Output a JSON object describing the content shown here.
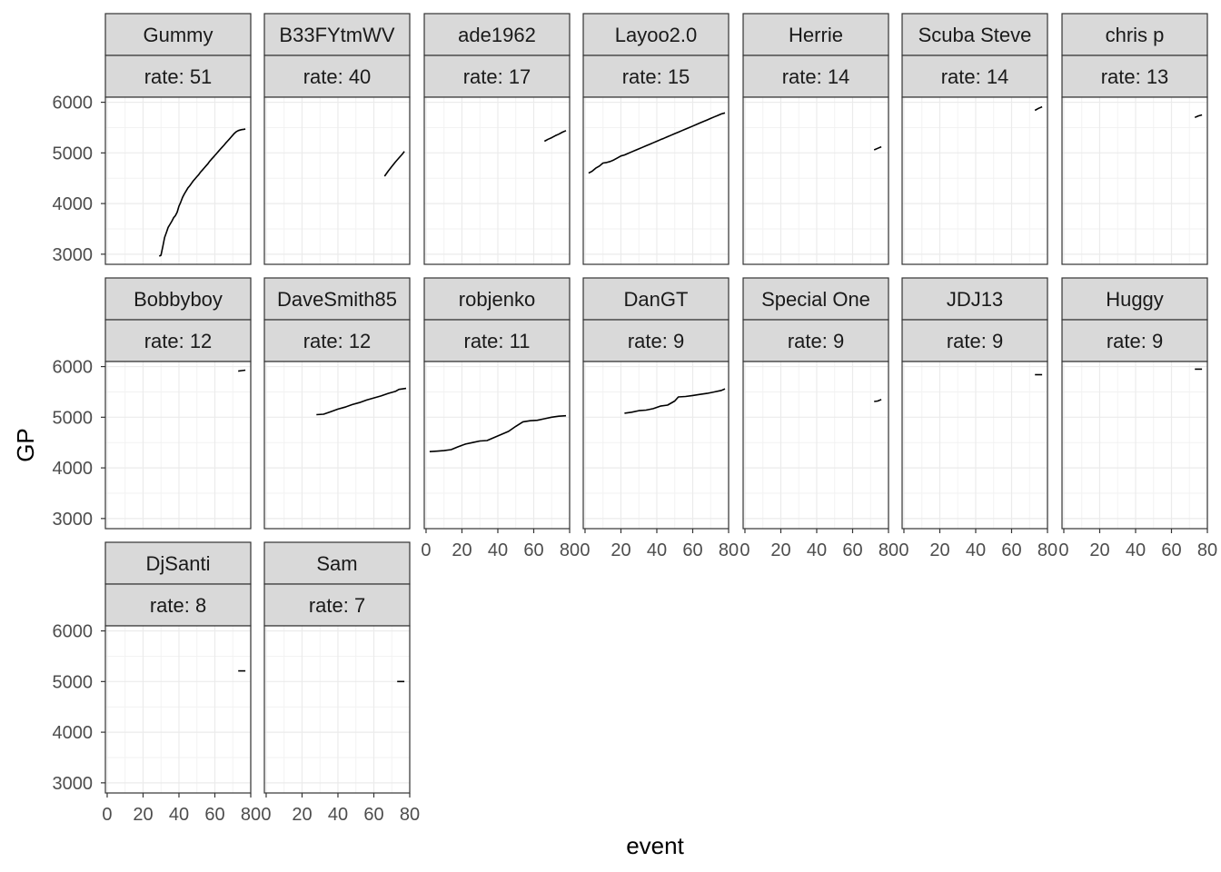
{
  "chart_data": {
    "type": "line",
    "layout": "faceted small multiples",
    "xlabel": "event",
    "ylabel": "GP",
    "xlim": [
      -1,
      80
    ],
    "ylim": [
      2800,
      6100
    ],
    "x_ticks": [
      0,
      20,
      40,
      60,
      80
    ],
    "y_ticks": [
      3000,
      4000,
      5000,
      6000
    ],
    "grid": true,
    "panels": [
      {
        "name": "Gummy",
        "rate_label": "rate:  51",
        "x": [
          29,
          30,
          31,
          32,
          33,
          34,
          35,
          36,
          37,
          38,
          39,
          40,
          41,
          42,
          43,
          44,
          45,
          46,
          47,
          48,
          49,
          50,
          51,
          52,
          53,
          54,
          55,
          56,
          57,
          58,
          59,
          60,
          61,
          62,
          63,
          64,
          65,
          66,
          67,
          68,
          69,
          70,
          71,
          72,
          73,
          74,
          75,
          76,
          77
        ],
        "y": [
          2960,
          2980,
          3150,
          3330,
          3430,
          3530,
          3590,
          3650,
          3720,
          3760,
          3830,
          3950,
          4030,
          4120,
          4190,
          4250,
          4310,
          4350,
          4400,
          4450,
          4490,
          4530,
          4570,
          4620,
          4660,
          4700,
          4740,
          4780,
          4830,
          4870,
          4910,
          4950,
          4990,
          5030,
          5070,
          5110,
          5150,
          5190,
          5230,
          5270,
          5310,
          5350,
          5390,
          5420,
          5440,
          5450,
          5460,
          5465,
          5470
        ]
      },
      {
        "name": "B33FYtmWV",
        "rate_label": "rate:  40",
        "x": [
          66,
          68,
          70,
          72,
          74,
          76,
          77
        ],
        "y": [
          4540,
          4640,
          4730,
          4820,
          4900,
          4980,
          5030
        ]
      },
      {
        "name": "ade1962",
        "rate_label": "rate:  17",
        "x": [
          66,
          68,
          70,
          72,
          74,
          76,
          78
        ],
        "y": [
          5230,
          5270,
          5300,
          5340,
          5370,
          5410,
          5440
        ]
      },
      {
        "name": "Layoo2.0",
        "rate_label": "rate:  15",
        "x": [
          2,
          4,
          6,
          8,
          10,
          12,
          14,
          16,
          18,
          20,
          22,
          24,
          26,
          28,
          30,
          32,
          34,
          36,
          38,
          40,
          42,
          44,
          46,
          48,
          50,
          52,
          54,
          56,
          58,
          60,
          62,
          64,
          66,
          68,
          70,
          72,
          74,
          76,
          78
        ],
        "y": [
          4600,
          4640,
          4700,
          4740,
          4800,
          4810,
          4830,
          4860,
          4900,
          4940,
          4960,
          4990,
          5020,
          5050,
          5080,
          5110,
          5140,
          5170,
          5200,
          5230,
          5260,
          5290,
          5320,
          5350,
          5380,
          5410,
          5440,
          5470,
          5500,
          5530,
          5560,
          5590,
          5620,
          5650,
          5680,
          5710,
          5740,
          5770,
          5790
        ]
      },
      {
        "name": "Herrie",
        "rate_label": "rate:  14",
        "x": [
          72,
          74,
          76
        ],
        "y": [
          5060,
          5090,
          5120
        ]
      },
      {
        "name": "Scuba Steve",
        "rate_label": "rate:  14",
        "x": [
          73,
          75,
          77
        ],
        "y": [
          5840,
          5880,
          5910
        ]
      },
      {
        "name": "chris p",
        "rate_label": "rate:  13",
        "x": [
          73,
          75,
          77
        ],
        "y": [
          5700,
          5730,
          5750
        ]
      },
      {
        "name": "Bobbyboy",
        "rate_label": "rate:  12",
        "x": [
          73,
          75,
          77
        ],
        "y": [
          5910,
          5920,
          5930
        ]
      },
      {
        "name": "DaveSmith85",
        "rate_label": "rate:  12",
        "x": [
          28,
          32,
          36,
          40,
          44,
          48,
          52,
          56,
          60,
          64,
          68,
          72,
          74,
          78
        ],
        "y": [
          5050,
          5060,
          5110,
          5160,
          5200,
          5250,
          5290,
          5340,
          5380,
          5420,
          5470,
          5510,
          5550,
          5570
        ]
      },
      {
        "name": "robjenko",
        "rate_label": "rate:  11",
        "x": [
          2,
          6,
          10,
          14,
          18,
          22,
          26,
          30,
          34,
          38,
          42,
          46,
          50,
          54,
          58,
          62,
          66,
          70,
          74,
          78
        ],
        "y": [
          4320,
          4330,
          4340,
          4360,
          4420,
          4470,
          4500,
          4530,
          4540,
          4600,
          4660,
          4720,
          4820,
          4910,
          4930,
          4940,
          4970,
          5000,
          5020,
          5030
        ]
      },
      {
        "name": "DanGT",
        "rate_label": "rate:  9",
        "x": [
          22,
          26,
          30,
          34,
          38,
          42,
          46,
          50,
          52,
          56,
          60,
          64,
          68,
          72,
          76,
          78
        ],
        "y": [
          5080,
          5100,
          5130,
          5140,
          5170,
          5220,
          5240,
          5320,
          5400,
          5410,
          5430,
          5450,
          5470,
          5500,
          5530,
          5560
        ]
      },
      {
        "name": "Special One",
        "rate_label": "rate:  9",
        "x": [
          72,
          74,
          76
        ],
        "y": [
          5310,
          5320,
          5350
        ]
      },
      {
        "name": "JDJ13",
        "rate_label": "rate:  9",
        "x": [
          73,
          77
        ],
        "y": [
          5840,
          5840
        ]
      },
      {
        "name": "Huggy",
        "rate_label": "rate:  9",
        "x": [
          73,
          77
        ],
        "y": [
          5950,
          5950
        ]
      },
      {
        "name": "DjSanti",
        "rate_label": "rate:  8",
        "x": [
          73,
          77
        ],
        "y": [
          5210,
          5210
        ]
      },
      {
        "name": "Sam",
        "rate_label": "rate:  7",
        "x": [
          73,
          77
        ],
        "y": [
          5000,
          5000
        ]
      }
    ]
  }
}
